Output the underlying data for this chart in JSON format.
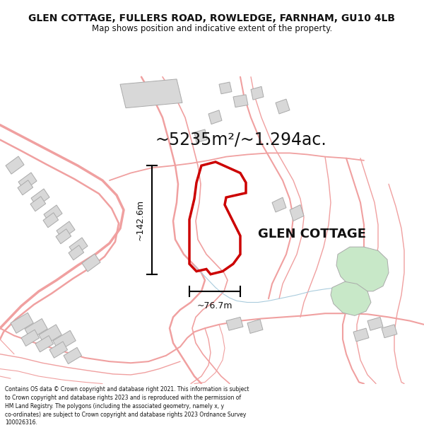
{
  "title": "GLEN COTTAGE, FULLERS ROAD, ROWLEDGE, FARNHAM, GU10 4LB",
  "subtitle": "Map shows position and indicative extent of the property.",
  "area_text": "~5235m²/~1.294ac.",
  "label": "GLEN COTTAGE",
  "dim_vertical": "~142.6m",
  "dim_horizontal": "~76.7m",
  "footer": "Contains OS data © Crown copyright and database right 2021. This information is subject to Crown copyright and database rights 2023 and is reproduced with the permission of HM Land Registry. The polygons (including the associated geometry, namely x, y co-ordinates) are subject to Crown copyright and database rights 2023 Ordnance Survey 100026316.",
  "bg_color": "#ffffff",
  "map_bg": "#ffffff",
  "road_color": "#f0a0a0",
  "plot_color": "#cc0000",
  "building_color": "#d8d8d8",
  "green_color": "#c8e8c8",
  "water_color": "#ddeeff",
  "figsize": [
    6.0,
    6.25
  ],
  "dpi": 100,
  "title_fontsize": 10,
  "subtitle_fontsize": 8.5,
  "area_fontsize": 17,
  "label_fontsize": 13,
  "dim_fontsize": 9,
  "footer_fontsize": 5.5
}
